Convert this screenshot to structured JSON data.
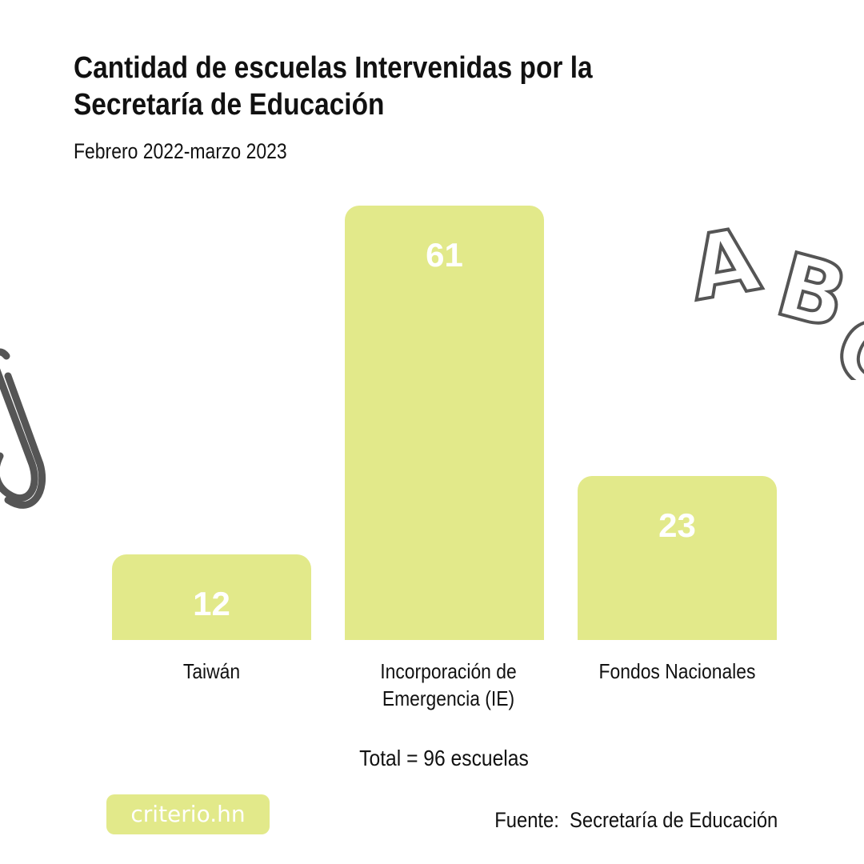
{
  "chart_data": {
    "type": "bar",
    "title": "Cantidad de escuelas Intervenidas por la Secretaría de Educación",
    "subtitle": "Febrero 2022-marzo 2023",
    "categories": [
      "Taiwán",
      "Incorporación de Emergencia (IE)",
      "Fondos Nacionales"
    ],
    "category_lines": [
      [
        "Taiwán"
      ],
      [
        "Incorporación de",
        "Emergencia (IE)"
      ],
      [
        "Fondos Nacionales"
      ]
    ],
    "values": [
      12,
      61,
      23
    ],
    "value_labels": [
      "12",
      "61",
      "23"
    ],
    "xlabel": "",
    "ylabel": "",
    "ylim": [
      0,
      61
    ],
    "grid": false,
    "bar_color": "#e2e98a"
  },
  "total": "Total = 96 escuelas",
  "logo": "criterio.hn",
  "source": "Fuente:  Secretaría de Educación",
  "decorations": {
    "letters": "ABC"
  }
}
